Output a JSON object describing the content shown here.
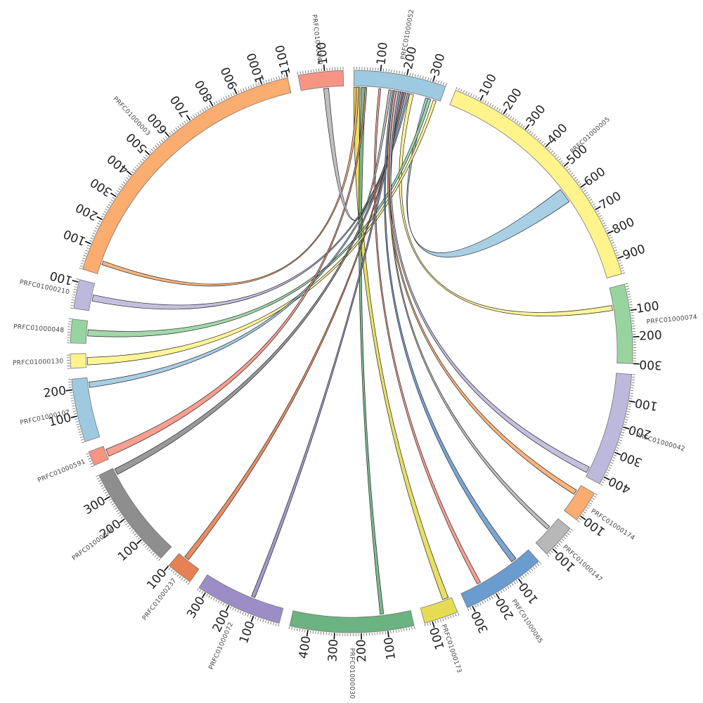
{
  "segments": [
    {
      "name": "PRFC01000052",
      "length": 350,
      "color": "#9ecae1"
    },
    {
      "name": "PRFC01000005",
      "length": 960,
      "color": "#fff48c"
    },
    {
      "name": "PRFC01000074",
      "length": 300,
      "color": "#98d4a0"
    },
    {
      "name": "PRFC01000042",
      "length": 430,
      "color": "#bcb9dc"
    },
    {
      "name": "PRFC01000174",
      "length": 120,
      "color": "#fbac6f"
    },
    {
      "name": "PRFC01000147",
      "length": 130,
      "color": "#b8b8b8"
    },
    {
      "name": "PRFC01000065",
      "length": 320,
      "color": "#6b9ccf"
    },
    {
      "name": "PRFC01000173",
      "length": 130,
      "color": "#e6dc54"
    },
    {
      "name": "PRFC01000030",
      "length": 470,
      "color": "#6bb381"
    },
    {
      "name": "PRFC01000072",
      "length": 330,
      "color": "#9b8ec6"
    },
    {
      "name": "PRFC01000237",
      "length": 100,
      "color": "#e58152"
    },
    {
      "name": "PRFC01000046",
      "length": 390,
      "color": "#8e8e8e"
    },
    {
      "name": "PRFC01000591",
      "length": 55,
      "color": "#f69584"
    },
    {
      "name": "PRFC01000107",
      "length": 240,
      "color": "#9ecae1"
    },
    {
      "name": "PRFC01000130",
      "length": 55,
      "color": "#fff48c"
    },
    {
      "name": "PRFC01000048",
      "length": 90,
      "color": "#98d4a0"
    },
    {
      "name": "PRFC01000210",
      "length": 110,
      "color": "#bcb9dc"
    },
    {
      "name": "PRFC01000003",
      "length": 1100,
      "color": "#fbac6f"
    },
    {
      "name": "PRFC01000142",
      "length": 170,
      "color": "#f69584"
    }
  ],
  "links": [
    {
      "source": "PRFC01000052",
      "s_start": 0,
      "s_end": 25,
      "target": "PRFC01000173",
      "t_start": 12,
      "t_end": 36,
      "color": "#e6dc54"
    },
    {
      "source": "PRFC01000052",
      "s_start": 30,
      "s_end": 48,
      "target": "PRFC01000030",
      "t_start": 108,
      "t_end": 122,
      "color": "#6bb381"
    },
    {
      "source": "PRFC01000052",
      "s_start": 225,
      "s_end": 240,
      "target": "PRFC01000074",
      "t_start": 70,
      "t_end": 90,
      "color": "#fff48c"
    },
    {
      "source": "PRFC01000052",
      "s_start": 10,
      "s_end": 20,
      "target": "PRFC01000003",
      "t_start": 40,
      "t_end": 55,
      "color": "#fbac6f"
    },
    {
      "source": "PRFC01000052",
      "s_start": 290,
      "s_end": 300,
      "target": "PRFC01000005",
      "t_start": 560,
      "t_end": 620,
      "color": "#9ecae1"
    },
    {
      "source": "PRFC01000052",
      "s_start": 300,
      "s_end": 312,
      "target": "PRFC01000048",
      "t_start": 30,
      "t_end": 55,
      "color": "#98d4a0"
    },
    {
      "source": "PRFC01000052",
      "s_start": 322,
      "s_end": 334,
      "target": "PRFC01000130",
      "t_start": 10,
      "t_end": 40,
      "color": "#fff48c"
    },
    {
      "source": "PRFC01000052",
      "s_start": 215,
      "s_end": 222,
      "target": "PRFC01000210",
      "t_start": 40,
      "t_end": 65,
      "color": "#bcb9dc"
    },
    {
      "source": "PRFC01000052",
      "s_start": 208,
      "s_end": 216,
      "target": "PRFC01000107",
      "t_start": 200,
      "t_end": 222,
      "color": "#9ecae1"
    },
    {
      "source": "PRFC01000052",
      "s_start": 45,
      "s_end": 52,
      "target": "PRFC01000591",
      "t_start": 10,
      "t_end": 40,
      "color": "#f69584"
    },
    {
      "source": "PRFC01000052",
      "s_start": 200,
      "s_end": 208,
      "target": "PRFC01000046",
      "t_start": 360,
      "t_end": 385,
      "color": "#8e8e8e"
    },
    {
      "source": "PRFC01000052",
      "s_start": 195,
      "s_end": 200,
      "target": "PRFC01000237",
      "t_start": 55,
      "t_end": 75,
      "color": "#e58152"
    },
    {
      "source": "PRFC01000052",
      "s_start": 187,
      "s_end": 195,
      "target": "PRFC01000072",
      "t_start": 120,
      "t_end": 135,
      "color": "#9b8ec6"
    },
    {
      "source": "PRFC01000052",
      "s_start": 155,
      "s_end": 162,
      "target": "PRFC01000065",
      "t_start": 60,
      "t_end": 82,
      "color": "#6b9ccf"
    },
    {
      "source": "PRFC01000052",
      "s_start": 180,
      "s_end": 187,
      "target": "PRFC01000147",
      "t_start": 45,
      "t_end": 60,
      "color": "#b8b8b8"
    },
    {
      "source": "PRFC01000052",
      "s_start": 162,
      "s_end": 170,
      "target": "PRFC01000174",
      "t_start": 25,
      "t_end": 45,
      "color": "#fbac6f"
    },
    {
      "source": "PRFC01000052",
      "s_start": 170,
      "s_end": 180,
      "target": "PRFC01000042",
      "t_start": 390,
      "t_end": 415,
      "color": "#bcb9dc"
    },
    {
      "source": "PRFC01000052",
      "s_start": 100,
      "s_end": 108,
      "target": "PRFC01000065",
      "t_start": 230,
      "t_end": 245,
      "color": "#f69584"
    },
    {
      "source": "PRFC01000142",
      "s_start": 90,
      "s_end": 110,
      "target": "PRFC01000052",
      "t_start": 140,
      "t_end": 150,
      "color": "#b8b8b8"
    }
  ]
}
